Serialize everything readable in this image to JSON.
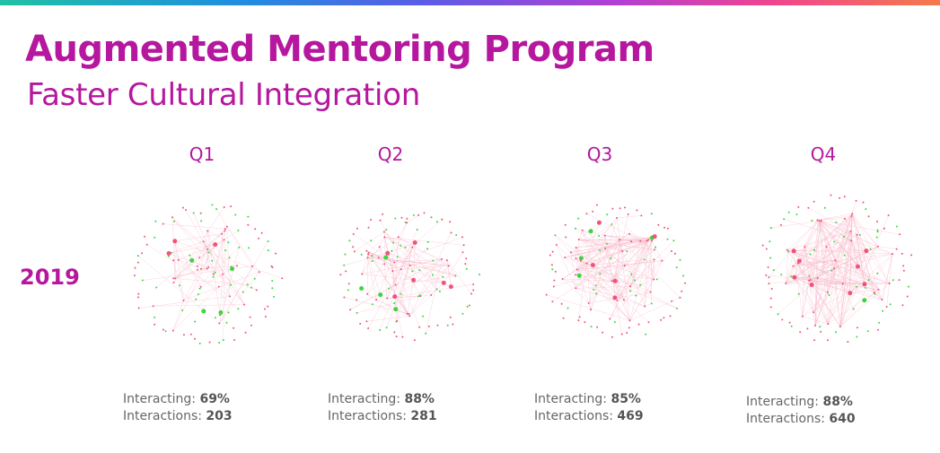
{
  "header": {
    "title": "Augmented Mentoring Program",
    "subtitle": "Faster Cultural Integration"
  },
  "row_label": "2019",
  "colors": {
    "accent": "#b5179e",
    "node_pink": "#f0537a",
    "node_green": "#3fd43f",
    "edge": "#f7b6c8"
  },
  "quarters": [
    {
      "label": "Q1",
      "interacting_label": "Interacting:",
      "interacting_value": "69%",
      "interactions_label": "Interactions:",
      "interactions_value": "203"
    },
    {
      "label": "Q2",
      "interacting_label": "Interacting:",
      "interacting_value": "88%",
      "interactions_label": "Interactions:",
      "interactions_value": "281"
    },
    {
      "label": "Q3",
      "interacting_label": "Interacting:",
      "interacting_value": "85%",
      "interactions_label": "Interactions:",
      "interactions_value": "469"
    },
    {
      "label": "Q4",
      "interacting_label": "Interacting:",
      "interacting_value": "88%",
      "interactions_label": "Interactions:",
      "interactions_value": "640"
    }
  ]
}
